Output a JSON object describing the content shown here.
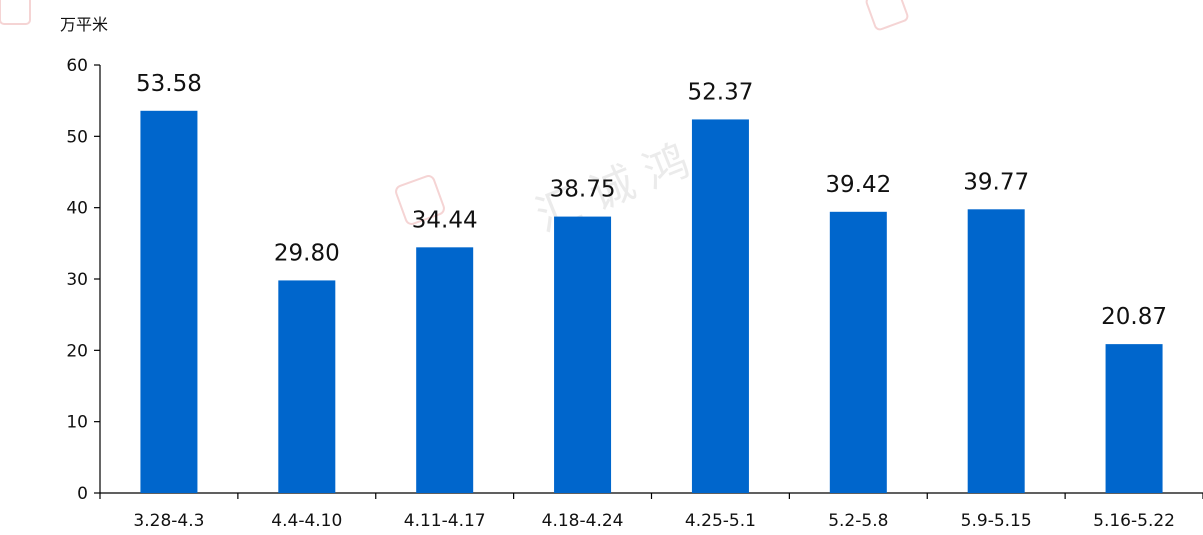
{
  "chart_data": {
    "type": "bar",
    "unit_label": "万平米",
    "categories": [
      "3.28-4.3",
      "4.4-4.10",
      "4.11-4.17",
      "4.18-4.24",
      "4.25-5.1",
      "5.2-5.8",
      "5.9-5.15",
      "5.16-5.22"
    ],
    "values": [
      53.58,
      29.8,
      34.44,
      38.75,
      52.37,
      39.42,
      39.77,
      20.87
    ],
    "value_labels": [
      "53.58",
      "29.80",
      "34.44",
      "38.75",
      "52.37",
      "39.42",
      "39.77",
      "20.87"
    ],
    "ylim": [
      0,
      60
    ],
    "yticks": [
      0,
      10,
      20,
      30,
      40,
      50,
      60
    ],
    "grid": false,
    "bar_color": "#0066CC"
  },
  "watermark": {
    "text": "汇 诚 鸿 图"
  }
}
